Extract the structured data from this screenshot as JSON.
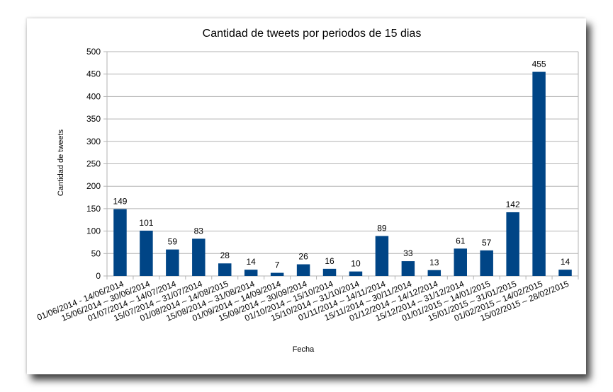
{
  "chart_data": {
    "type": "bar",
    "title": "Cantidad de tweets por periodos de 15 dias",
    "xlabel": "Fecha",
    "ylabel": "Cantidad de tweets",
    "ylim": [
      0,
      500
    ],
    "yticks": [
      0,
      50,
      100,
      150,
      200,
      250,
      300,
      350,
      400,
      450,
      500
    ],
    "grid": true,
    "bar_color": "#004586",
    "categories": [
      "01/06/2014 - 14/06/2014",
      "15/06/2014 – 30/06/2014",
      "01/07/2014 – 14/07/2014",
      "15/07/2014 – 31/07/2014",
      "01/08/2014 – 14/08/2015",
      "15/08/2014 – 31/08/2014",
      "01/09/2014 – 14/09/2014",
      "15/09/2014 – 30/09/2014",
      "01/10/2014 – 15/10/2014",
      "15/10/2014 – 31/10/2014",
      "01/11/2014 – 14/11/2014",
      "15/11/2014 – 30/11/2014",
      "01/12/2014 – 14/12/2014",
      "15/12/2014 – 31/12/2014",
      "01/01/2015 – 14/01/2015",
      "15/01/2015 – 31/01/2015",
      "01/02/2015 – 14/02/2015",
      "15/02/2015 – 28/02/2015"
    ],
    "values": [
      149,
      101,
      59,
      83,
      28,
      14,
      7,
      26,
      16,
      10,
      89,
      33,
      13,
      61,
      57,
      142,
      455,
      14
    ]
  }
}
